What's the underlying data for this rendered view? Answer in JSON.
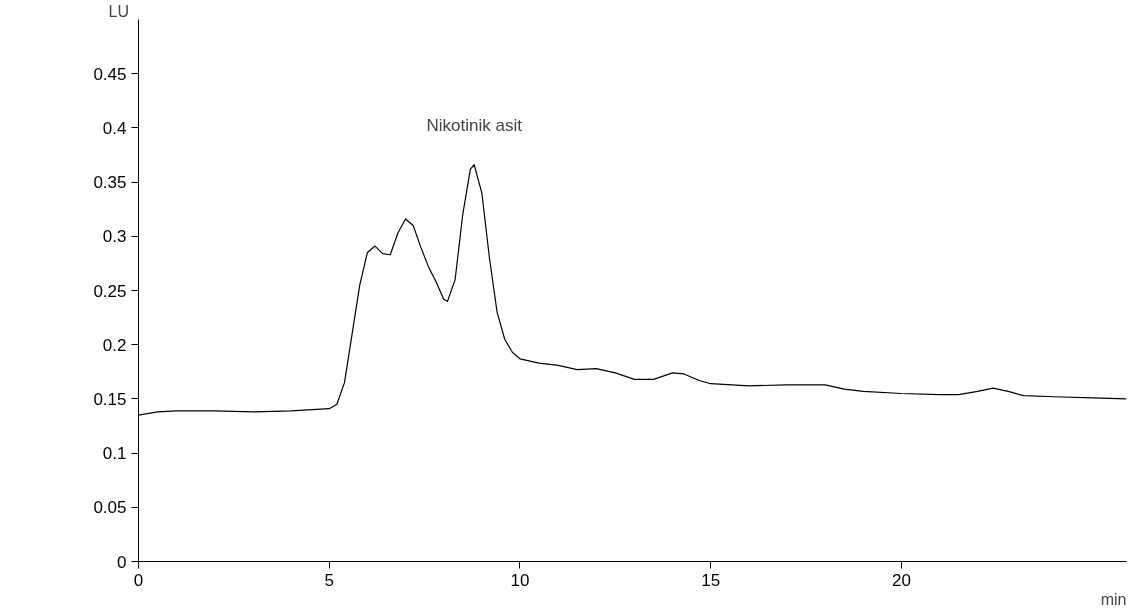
{
  "chart_data": {
    "type": "line",
    "xlabel": "min",
    "ylabel": "LU",
    "x": [
      0,
      0.5,
      1,
      2,
      3,
      4,
      5,
      5.2,
      5.4,
      5.6,
      5.8,
      6.0,
      6.2,
      6.4,
      6.6,
      6.8,
      7.0,
      7.2,
      7.4,
      7.6,
      7.8,
      8.0,
      8.1,
      8.3,
      8.5,
      8.7,
      8.8,
      9.0,
      9.2,
      9.4,
      9.6,
      9.8,
      10,
      10.5,
      11,
      11.5,
      12,
      12.5,
      13,
      13.5,
      14,
      14.3,
      14.7,
      15,
      16,
      17,
      18,
      18.5,
      19,
      20,
      21,
      21.5,
      22,
      22.4,
      22.8,
      23.2,
      24,
      25,
      25.9
    ],
    "series": [
      {
        "color": "#000000",
        "values": [
          0.135,
          0.138,
          0.139,
          0.139,
          0.138,
          0.139,
          0.141,
          0.145,
          0.165,
          0.21,
          0.255,
          0.285,
          0.291,
          0.284,
          0.283,
          0.303,
          0.316,
          0.31,
          0.29,
          0.272,
          0.258,
          0.242,
          0.24,
          0.26,
          0.32,
          0.362,
          0.366,
          0.34,
          0.28,
          0.23,
          0.205,
          0.193,
          0.187,
          0.183,
          0.181,
          0.177,
          0.178,
          0.174,
          0.168,
          0.168,
          0.174,
          0.173,
          0.167,
          0.164,
          0.162,
          0.163,
          0.163,
          0.159,
          0.157,
          0.155,
          0.154,
          0.154,
          0.157,
          0.16,
          0.157,
          0.153,
          0.152,
          0.151,
          0.15
        ]
      }
    ],
    "xlim": [
      0,
      25.9
    ],
    "ylim": [
      0,
      0.5
    ],
    "xticks": [
      0,
      5,
      10,
      15,
      20
    ],
    "yticks": [
      0,
      0.05,
      0.1,
      0.15,
      0.2,
      0.25,
      0.3,
      0.35,
      0.4,
      0.45
    ],
    "grid": false,
    "marker": "none",
    "line_style": "solid",
    "annotations": [
      {
        "text": "Nikotinik asit",
        "x": 8.8,
        "y": 0.366
      }
    ]
  }
}
